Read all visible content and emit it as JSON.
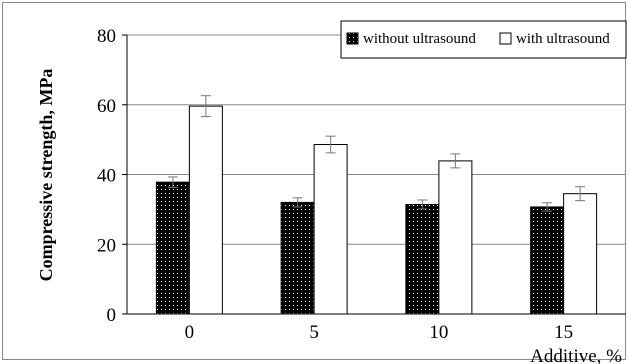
{
  "chart_data": {
    "type": "bar",
    "categories": [
      "0",
      "5",
      "10",
      "15"
    ],
    "series": [
      {
        "name": "without ultrasound",
        "values": [
          37.8,
          32.0,
          31.4,
          30.7
        ],
        "errors": [
          1.5,
          1.3,
          1.3,
          1.2
        ],
        "fill": "dotted-black"
      },
      {
        "name": "with ultrasound",
        "values": [
          59.6,
          48.6,
          43.9,
          34.5
        ],
        "errors": [
          3.0,
          2.4,
          2.0,
          2.0
        ],
        "fill": "white"
      }
    ],
    "title": "",
    "xlabel": "Additive, %",
    "ylabel": "Compressive strength, MPa",
    "ylim": [
      0,
      80
    ],
    "yticks": [
      0,
      20,
      40,
      60,
      80
    ],
    "grid": true,
    "legend_position": "top-right"
  }
}
